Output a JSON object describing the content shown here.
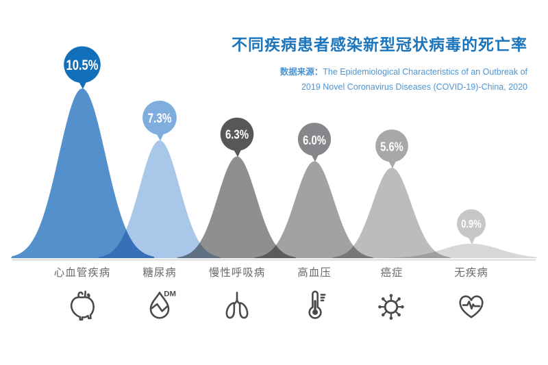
{
  "header": {
    "title": "不同疾病患者感染新型冠状病毒的死亡率",
    "source_label": "数据来源：",
    "source_line1": "The Epidemiological Characteristics of an Outbreak of",
    "source_line2": "2019 Novel Coronavirus Diseases (COVID-19)-China, 2020"
  },
  "chart_data": {
    "type": "area",
    "subtype": "bell-curve-infographic",
    "title": "不同疾病患者感染新型冠状病毒的死亡率",
    "source": "数据来源：The Epidemiological Characteristics of an Outbreak of 2019 Novel Coronavirus Diseases (COVID-19)-China, 2020",
    "unit": "%",
    "categories": [
      "心血管疾病",
      "糖尿病",
      "慢性呼吸病",
      "高血压",
      "癌症",
      "无疾病"
    ],
    "values": [
      10.5,
      7.3,
      6.3,
      6.0,
      5.6,
      0.9
    ],
    "value_labels": [
      "10.5%",
      "7.3%",
      "6.3%",
      "6.0%",
      "5.6%",
      "0.9%"
    ],
    "curve_colors": [
      "#5490cb",
      "#a9c7e8",
      "#8f8f8f",
      "#a2a2a2",
      "#bcbcbc",
      "#d7d7d7"
    ],
    "bubble_colors": [
      "#1170b9",
      "#7fadde",
      "#57575a",
      "#86878a",
      "#a7a8aa",
      "#c6c7c9"
    ],
    "icons": [
      "anatomical-heart",
      "diabetes-drop",
      "lungs",
      "thermometer",
      "virus",
      "heart-pulse"
    ],
    "ylim": [
      0,
      11
    ],
    "grid": false,
    "legend": "none"
  },
  "colors": {
    "background": "#ffffff",
    "title": "#1b75bc",
    "source": "#4f93d0",
    "category_label": "#6a6a6a",
    "icon": "#4a4a4c",
    "baseline": "#dadada",
    "bubble_text": "#ffffff"
  }
}
